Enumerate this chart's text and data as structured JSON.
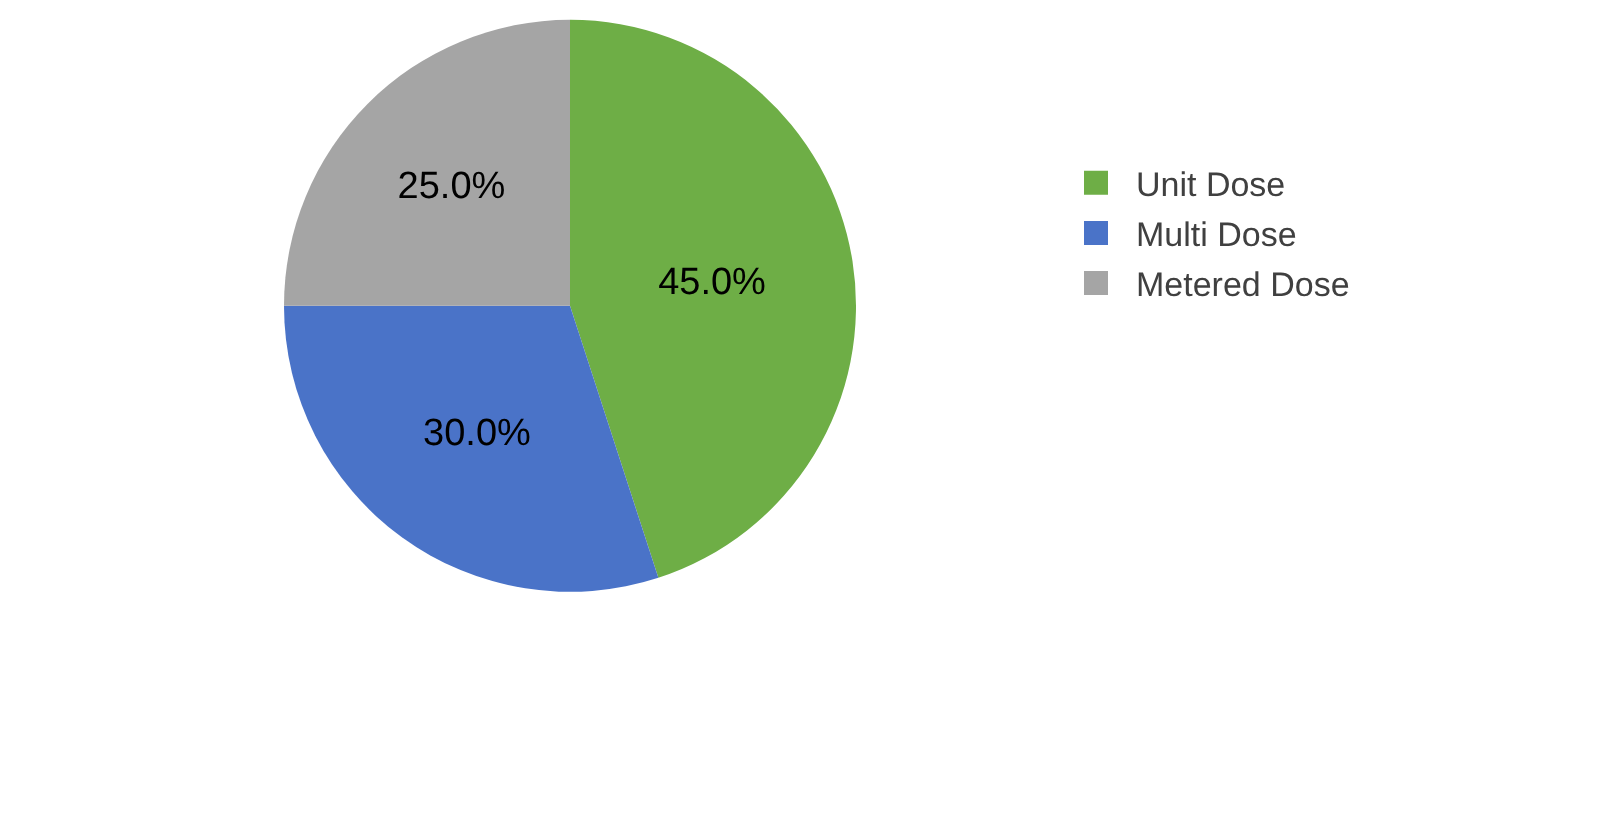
{
  "chart_data": {
    "type": "pie",
    "categories": [
      "Unit Dose",
      "Multi Dose",
      "Metered Dose"
    ],
    "values": [
      45,
      30,
      25
    ],
    "colors": [
      "#6eae46",
      "#4a73c8",
      "#a5a5a5"
    ],
    "value_labels": [
      "45.0%",
      "30.0%",
      "25.0%"
    ],
    "legend": "right"
  }
}
